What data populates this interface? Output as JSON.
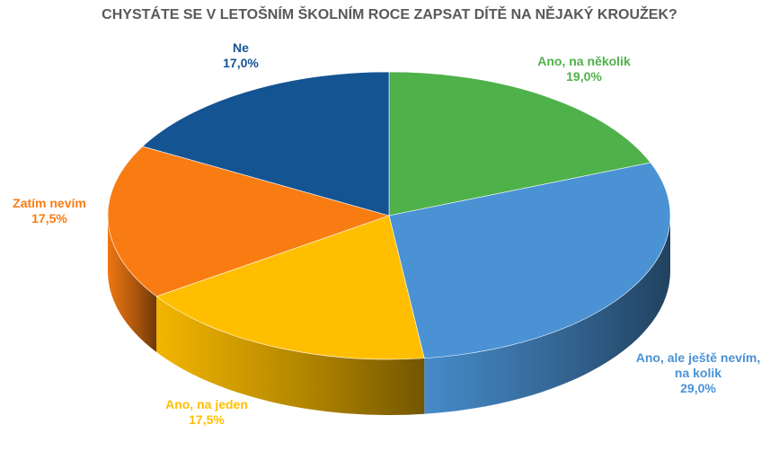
{
  "chart_data": {
    "type": "pie",
    "title": "CHYSTÁTE SE V LETOŠNÍM ŠKOLNÍM ROCE ZAPSAT DÍTĚ NA NĚJAKÝ KROUŽEK?",
    "slices": [
      {
        "name": "Ano, na několik",
        "name_lines": [
          "Ano, na několik"
        ],
        "value": 19.0,
        "label": "19,0%",
        "color": "#4FB14A"
      },
      {
        "name": "Ano, ale ještě nevím, na kolik",
        "name_lines": [
          "Ano, ale ještě nevím,",
          "na kolik"
        ],
        "value": 29.0,
        "label": "29,0%",
        "color": "#4A92D4"
      },
      {
        "name": "Ano, na jeden",
        "name_lines": [
          "Ano, na jeden"
        ],
        "value": 17.5,
        "label": "17,5%",
        "color": "#FFBF00"
      },
      {
        "name": "Zatím nevím",
        "name_lines": [
          "Zatím nevím"
        ],
        "value": 17.5,
        "label": "17,5%",
        "color": "#F97C12"
      },
      {
        "name": "Ne",
        "name_lines": [
          "Ne"
        ],
        "value": 17.0,
        "label": "17,0%",
        "color": "#155493"
      }
    ],
    "style": "3d-pie",
    "start": "top, clockwise"
  }
}
